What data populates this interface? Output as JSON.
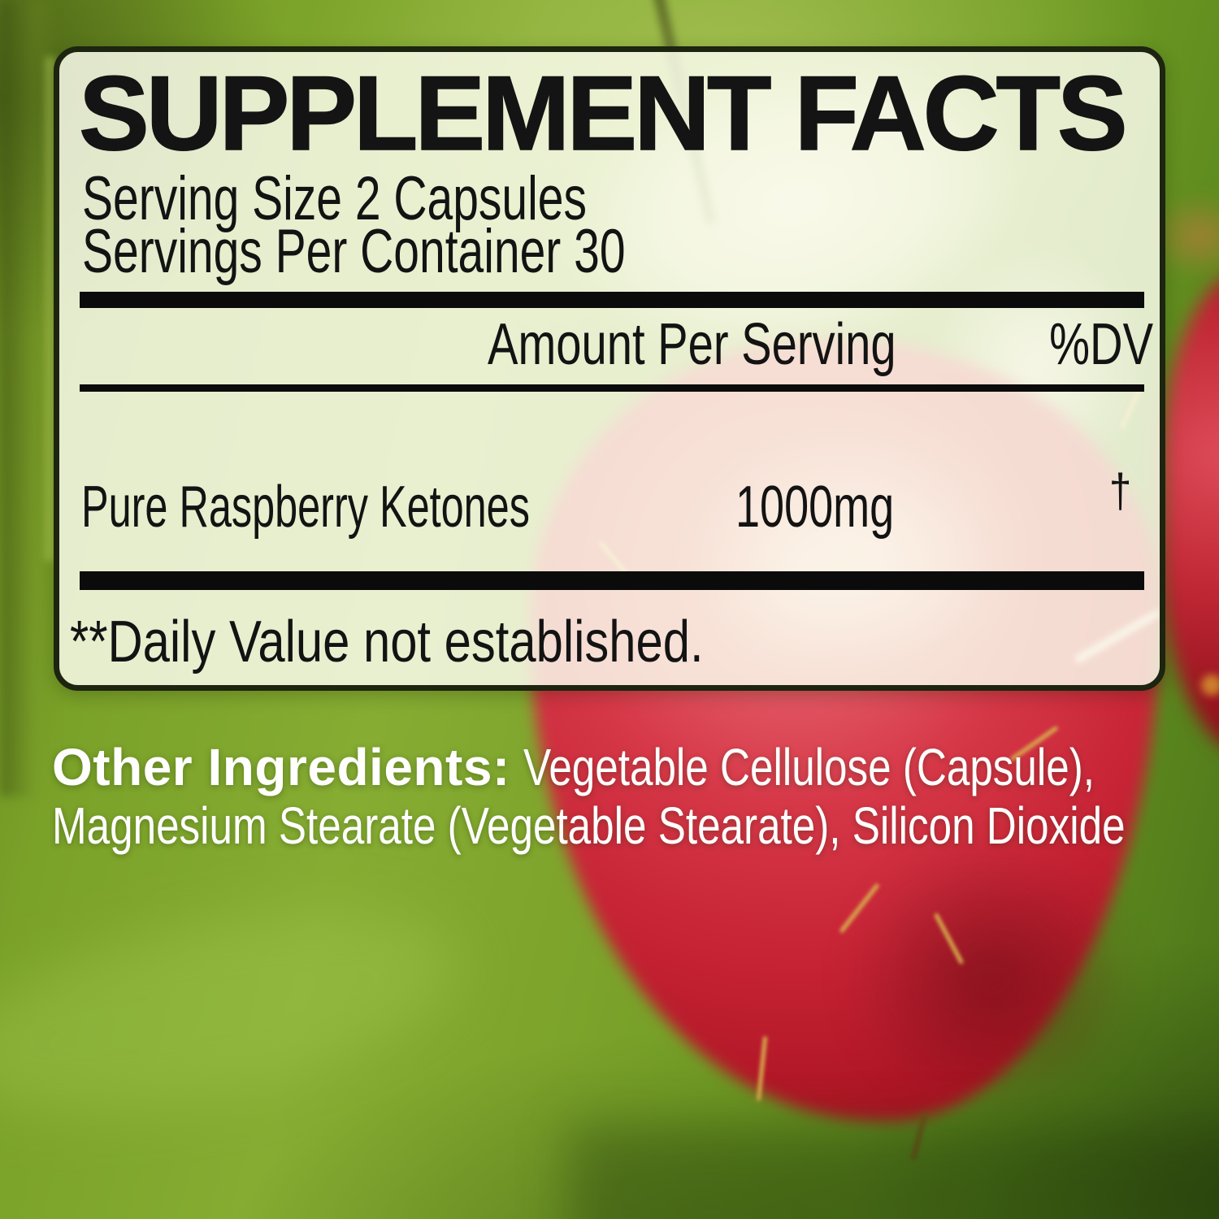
{
  "supplement_facts": {
    "title": "SUPPLEMENT FACTS",
    "serving_size": "Serving Size 2 Capsules",
    "servings_per_container": "Servings Per Container 30",
    "columns": {
      "amount_header": "Amount Per Serving",
      "dv_header": "%DV"
    },
    "rows": [
      {
        "name": "Pure Raspberry Ketones",
        "amount": "1000mg",
        "dv_symbol": "†"
      }
    ],
    "footnote": "**Daily Value not established."
  },
  "other_ingredients": {
    "label": "Other Ingredients:",
    "line1": "Vegetable Cellulose (Capsule),",
    "line2": "Magnesium Stearate (Vegetable Stearate), Silicon Dioxide"
  },
  "colors": {
    "panel_background": "rgba(252,253,238,0.84)",
    "panel_border": "#1d2410",
    "divider": "#0b0b0b",
    "label_text": "#131313",
    "ingredients_text": "#ffffff",
    "background_green": "#7da32b",
    "raspberry_red": "#c62334"
  }
}
